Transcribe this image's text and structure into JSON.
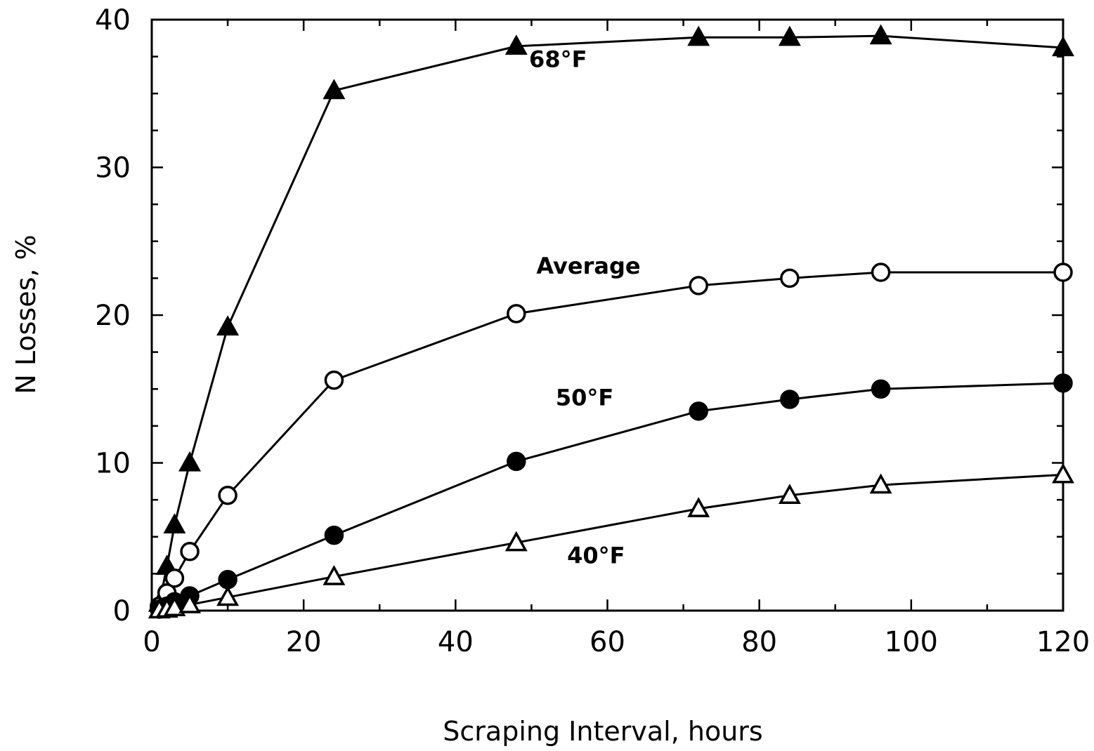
{
  "chart_data": {
    "type": "line",
    "title": "",
    "xlabel": "Scraping Interval, hours",
    "ylabel": "N Losses, %",
    "xlim": [
      0,
      120
    ],
    "ylim": [
      0,
      40
    ],
    "xticks": [
      0,
      20,
      40,
      60,
      80,
      100,
      120
    ],
    "yticks": [
      0,
      10,
      20,
      30,
      40
    ],
    "xtick_labels": [
      "0",
      "20",
      "40",
      "60",
      "80",
      "100",
      "120"
    ],
    "ytick_labels": [
      "0",
      "10",
      "20",
      "30",
      "40"
    ],
    "grid": false,
    "legend": "none",
    "series": [
      {
        "name": "68°F",
        "marker": "filled-triangle",
        "color": "#000000",
        "x": [
          1,
          2,
          3,
          5,
          10,
          24,
          48,
          72,
          84,
          96,
          120
        ],
        "y": [
          0.5,
          3,
          5.8,
          10,
          19.2,
          35.2,
          38.2,
          38.8,
          38.8,
          38.9,
          38.1
        ]
      },
      {
        "name": "Average",
        "marker": "open-circle",
        "color": "#000000",
        "x": [
          1,
          2,
          3,
          5,
          10,
          24,
          48,
          72,
          84,
          96,
          120
        ],
        "y": [
          0.3,
          1.2,
          2.2,
          4,
          7.8,
          15.6,
          20.1,
          22,
          22.5,
          22.9,
          22.9
        ]
      },
      {
        "name": "50°F",
        "marker": "filled-circle",
        "color": "#000000",
        "x": [
          1,
          2,
          3,
          5,
          10,
          24,
          48,
          72,
          84,
          96,
          120
        ],
        "y": [
          0.1,
          0.3,
          0.6,
          1,
          2.1,
          5.1,
          10.1,
          13.5,
          14.3,
          15,
          15.4
        ]
      },
      {
        "name": "40°F",
        "marker": "open-triangle",
        "color": "#000000",
        "x": [
          1,
          2,
          3,
          5,
          10,
          24,
          48,
          72,
          84,
          96,
          120
        ],
        "y": [
          0.05,
          0.1,
          0.2,
          0.4,
          0.9,
          2.3,
          4.6,
          6.9,
          7.8,
          8.5,
          9.2
        ]
      }
    ],
    "annotations": [
      {
        "text": "68°F",
        "series": "68°F",
        "x": 53.5,
        "y": 36.8
      },
      {
        "text": "Average",
        "series": "Average",
        "x": 57.5,
        "y": 22.8
      },
      {
        "text": "50°F",
        "series": "50°F",
        "x": 57,
        "y": 13.9
      },
      {
        "text": "40°F",
        "series": "40°F",
        "x": 58.5,
        "y": 3.2
      }
    ]
  }
}
